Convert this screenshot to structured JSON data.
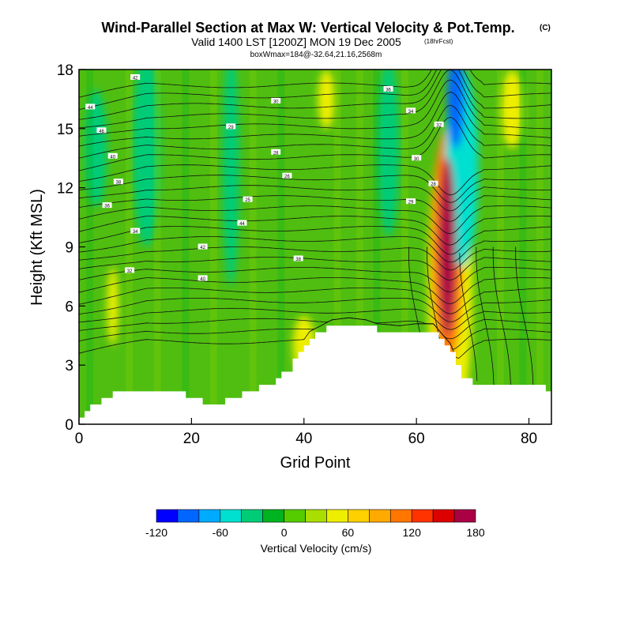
{
  "chart_data": {
    "type": "heatmap",
    "title": "Wind-Parallel Section at Max W: Vertical Velocity & Pot.Temp.",
    "title_mark": "(C)",
    "subtitle": "Valid 1400 LST [1200Z] MON 19 Dec 2005",
    "subtitle_note": "(18hrFcst)",
    "subtitle2": "boxWmax=184@-32.64,21.16,2568m",
    "xlabel": "Grid Point",
    "ylabel": "Height (Kft MSL)",
    "xlim": [
      0,
      84
    ],
    "ylim": [
      0,
      18
    ],
    "xticks": [
      0,
      20,
      40,
      60,
      80
    ],
    "yticks": [
      0,
      3,
      6,
      9,
      12,
      15,
      18
    ],
    "colorbar": {
      "label": "Vertical Velocity (cm/s)",
      "levels": [
        -120,
        -100,
        -80,
        -60,
        -40,
        -20,
        0,
        20,
        40,
        60,
        80,
        100,
        120,
        140,
        160,
        180
      ],
      "tick_labels": [
        "-120",
        "-60",
        "0",
        "60",
        "120",
        "180"
      ],
      "colors": [
        "#0000ff",
        "#0066ff",
        "#00aaff",
        "#00e0d0",
        "#00cc77",
        "#00b320",
        "#55cc00",
        "#aadd00",
        "#eeee00",
        "#ffd000",
        "#ffaa00",
        "#ff7700",
        "#ff3300",
        "#dd0000",
        "#aa0044"
      ]
    },
    "terrain_height_kft": [
      [
        0,
        0.3
      ],
      [
        1,
        0.6
      ],
      [
        2,
        0.9
      ],
      [
        4,
        1.4
      ],
      [
        8,
        1.6
      ],
      [
        16,
        1.6
      ],
      [
        20,
        1.4
      ],
      [
        23,
        1.0
      ],
      [
        26,
        1.2
      ],
      [
        29,
        1.5
      ],
      [
        32,
        1.9
      ],
      [
        35,
        2.2
      ],
      [
        37,
        2.8
      ],
      [
        39,
        3.6
      ],
      [
        41,
        4.4
      ],
      [
        43,
        4.7
      ],
      [
        45,
        5.0
      ],
      [
        48,
        5.1
      ],
      [
        51,
        5.0
      ],
      [
        53,
        4.8
      ],
      [
        57,
        4.7
      ],
      [
        60,
        4.8
      ],
      [
        63,
        4.8
      ],
      [
        66,
        3.8
      ],
      [
        68,
        2.4
      ],
      [
        71,
        2.0
      ],
      [
        80,
        2.0
      ],
      [
        84,
        1.7
      ]
    ],
    "vertical_velocity_cells_cm_s": [
      {
        "x": 65.5,
        "y": 9.0,
        "w": 3.0,
        "h": 9.0,
        "value": 160
      },
      {
        "x": 65.5,
        "y": 9.0,
        "w": 5.5,
        "h": 12.0,
        "value": 100
      },
      {
        "x": 66.0,
        "y": 7.0,
        "w": 8.0,
        "h": 16.0,
        "value": 50
      },
      {
        "x": 67.0,
        "y": 16.5,
        "w": 3.0,
        "h": 5.0,
        "value": -100
      },
      {
        "x": 68.0,
        "y": 13.0,
        "w": 6.0,
        "h": 10.0,
        "value": -45
      },
      {
        "x": 77.0,
        "y": 16.0,
        "w": 4.0,
        "h": 4.0,
        "value": 45
      },
      {
        "x": 6.0,
        "y": 6.0,
        "w": 2.0,
        "h": 4.0,
        "value": 45
      },
      {
        "x": 40.0,
        "y": 4.0,
        "w": 4.0,
        "h": 3.0,
        "value": 40
      },
      {
        "x": 44.0,
        "y": 16.5,
        "w": 3.0,
        "h": 3.0,
        "value": 40
      },
      {
        "x": 12.0,
        "y": 14.0,
        "w": 5.0,
        "h": 10.0,
        "value": -25
      },
      {
        "x": 27.0,
        "y": 13.0,
        "w": 3.0,
        "h": 12.0,
        "value": -25
      },
      {
        "x": 55.0,
        "y": 14.0,
        "w": 4.0,
        "h": 9.0,
        "value": -25
      },
      {
        "x": 3.0,
        "y": 14.0,
        "w": 4.0,
        "h": 6.0,
        "value": -25
      }
    ],
    "theta_contour_labels": [
      "42",
      "44",
      "46",
      "40",
      "38",
      "36",
      "34",
      "32",
      "30",
      "29",
      "28",
      "26",
      "25",
      "44",
      "42",
      "40",
      "38",
      "36",
      "34",
      "32",
      "30",
      "28",
      "29"
    ]
  }
}
